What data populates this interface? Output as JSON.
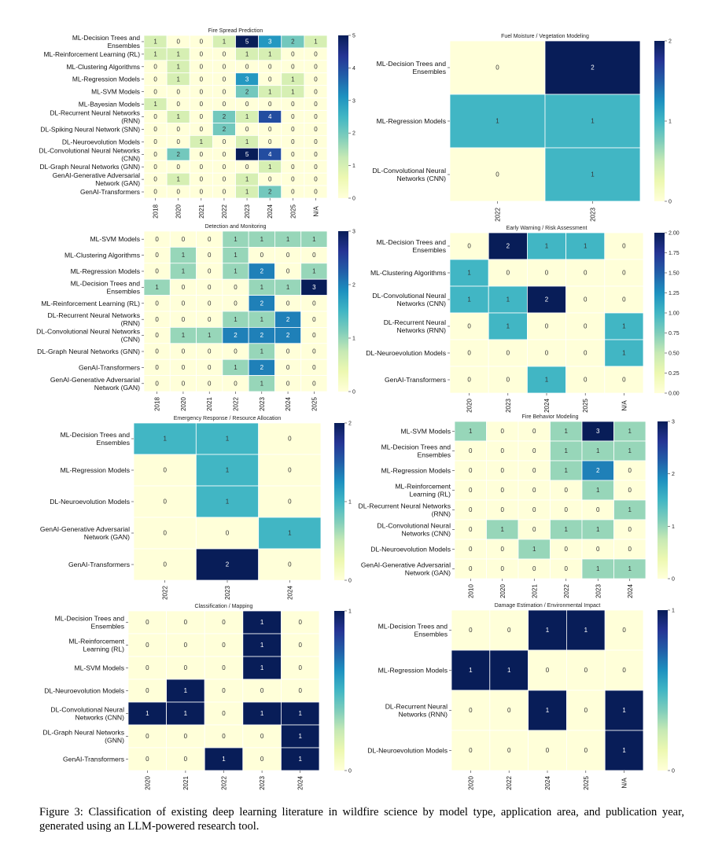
{
  "caption": "Figure 3: Classification of existing deep learning literature in wildfire science by model type, application area, and publication year, generated using an LLM-powered research tool.",
  "chart_data": [
    {
      "type": "heatmap",
      "title": "Fire Spread Prediction",
      "columns": [
        "2018",
        "2020",
        "2021",
        "2022",
        "2023",
        "2024",
        "2025",
        "N/A"
      ],
      "rows": [
        [
          "ML-Decision Trees and",
          "Ensembles"
        ],
        [
          "ML-Reinforcement Learning (RL)"
        ],
        [
          "ML-Clustering Algorithms"
        ],
        [
          "ML-Regression Models"
        ],
        [
          "ML-SVM Models"
        ],
        [
          "ML-Bayesian Models"
        ],
        [
          "DL-Recurrent Neural Networks",
          "(RNN)"
        ],
        [
          "DL-Spiking Neural Network (SNN)"
        ],
        [
          "DL-Neuroevolution Models"
        ],
        [
          "DL-Convolutional Neural Networks",
          "(CNN)"
        ],
        [
          "DL-Graph Neural Networks (GNN)"
        ],
        [
          "GenAI-Generative Adversarial",
          "Network (GAN)"
        ],
        [
          "GenAI-Transformers"
        ]
      ],
      "values": [
        [
          1,
          0,
          0,
          1,
          5,
          3,
          2,
          1
        ],
        [
          1,
          1,
          0,
          0,
          1,
          1,
          0,
          0
        ],
        [
          0,
          1,
          0,
          0,
          0,
          0,
          0,
          0
        ],
        [
          0,
          1,
          0,
          0,
          3,
          0,
          1,
          0
        ],
        [
          0,
          0,
          0,
          0,
          2,
          1,
          1,
          0
        ],
        [
          1,
          0,
          0,
          0,
          0,
          0,
          0,
          0
        ],
        [
          0,
          1,
          0,
          2,
          1,
          4,
          0,
          0
        ],
        [
          0,
          0,
          0,
          2,
          0,
          0,
          0,
          0
        ],
        [
          0,
          0,
          1,
          0,
          1,
          0,
          0,
          0
        ],
        [
          0,
          2,
          0,
          0,
          5,
          4,
          0,
          0
        ],
        [
          0,
          0,
          0,
          0,
          0,
          1,
          0,
          0
        ],
        [
          0,
          1,
          0,
          0,
          1,
          0,
          0,
          0
        ],
        [
          0,
          0,
          0,
          0,
          1,
          2,
          0,
          0
        ]
      ],
      "vmin": 0,
      "vmax": 5,
      "colorbar_ticks": [
        "0",
        "1",
        "2",
        "3",
        "4",
        "5"
      ]
    },
    {
      "type": "heatmap",
      "title": "Fuel Moisture / Vegetation Modeling",
      "columns": [
        "2022",
        "2023"
      ],
      "rows": [
        [
          "ML-Decision Trees and",
          "Ensembles"
        ],
        [
          "ML-Regression Models"
        ],
        [
          "DL-Convolutional Neural",
          "Networks (CNN)"
        ]
      ],
      "values": [
        [
          0,
          2
        ],
        [
          1,
          1
        ],
        [
          0,
          1
        ]
      ],
      "vmin": 0,
      "vmax": 2,
      "colorbar_ticks": [
        "0",
        "1",
        "2"
      ]
    },
    {
      "type": "heatmap",
      "title": "Detection and Monitoring",
      "columns": [
        "2018",
        "2020",
        "2021",
        "2022",
        "2023",
        "2024",
        "2025"
      ],
      "rows": [
        [
          "ML-SVM Models"
        ],
        [
          "ML-Clustering Algorithms"
        ],
        [
          "ML-Regression Models"
        ],
        [
          "ML-Decision Trees and",
          "Ensembles"
        ],
        [
          "ML-Reinforcement Learning (RL)"
        ],
        [
          "DL-Recurrent Neural Networks",
          "(RNN)"
        ],
        [
          "DL-Convolutional Neural Networks",
          "(CNN)"
        ],
        [
          "DL-Graph Neural Networks (GNN)"
        ],
        [
          "GenAI-Transformers"
        ],
        [
          "GenAI-Generative Adversarial",
          "Network (GAN)"
        ]
      ],
      "values": [
        [
          0,
          0,
          0,
          1,
          1,
          1,
          1
        ],
        [
          0,
          1,
          0,
          1,
          0,
          0,
          0
        ],
        [
          0,
          1,
          0,
          1,
          2,
          0,
          1
        ],
        [
          1,
          0,
          0,
          0,
          1,
          1,
          3
        ],
        [
          0,
          0,
          0,
          0,
          2,
          0,
          0
        ],
        [
          0,
          0,
          0,
          1,
          1,
          2,
          0
        ],
        [
          0,
          1,
          1,
          2,
          2,
          2,
          0
        ],
        [
          0,
          0,
          0,
          0,
          1,
          0,
          0
        ],
        [
          0,
          0,
          0,
          1,
          2,
          0,
          0
        ],
        [
          0,
          0,
          0,
          0,
          1,
          0,
          0
        ]
      ],
      "vmin": 0,
      "vmax": 3,
      "colorbar_ticks": [
        "0",
        "1",
        "2",
        "3"
      ]
    },
    {
      "type": "heatmap",
      "title": "Early Warning / Risk Assessment",
      "columns": [
        "2020",
        "2023",
        "2024",
        "2025",
        "N/A"
      ],
      "rows": [
        [
          "ML-Decision Trees and",
          "Ensembles"
        ],
        [
          "ML-Clustering Algorithms"
        ],
        [
          "DL-Convolutional Neural",
          "Networks (CNN)"
        ],
        [
          "DL-Recurrent Neural",
          "Networks (RNN)"
        ],
        [
          "DL-Neuroevolution Models"
        ],
        [
          "GenAI-Transformers"
        ]
      ],
      "values": [
        [
          0,
          2,
          1,
          1,
          0
        ],
        [
          1,
          0,
          0,
          0,
          0
        ],
        [
          1,
          1,
          2,
          0,
          0
        ],
        [
          0,
          1,
          0,
          0,
          1
        ],
        [
          0,
          0,
          0,
          0,
          1
        ],
        [
          0,
          0,
          1,
          0,
          0
        ]
      ],
      "vmin": 0,
      "vmax": 2,
      "colorbar_ticks": [
        "0.00",
        "0.25",
        "0.50",
        "0.75",
        "1.00",
        "1.25",
        "1.50",
        "1.75",
        "2.00"
      ]
    },
    {
      "type": "heatmap",
      "title": "Emergency Response / Resource Allocation",
      "columns": [
        "2022",
        "2023",
        "2024"
      ],
      "rows": [
        [
          "ML-Decision Trees and",
          "Ensembles"
        ],
        [
          "ML-Regression Models"
        ],
        [
          "DL-Neuroevolution Models"
        ],
        [
          "GenAI-Generative Adversarial",
          "Network (GAN)"
        ],
        [
          "GenAI-Transformers"
        ]
      ],
      "values": [
        [
          1,
          1,
          0
        ],
        [
          0,
          1,
          0
        ],
        [
          0,
          1,
          0
        ],
        [
          0,
          0,
          1
        ],
        [
          0,
          2,
          0
        ]
      ],
      "vmin": 0,
      "vmax": 2,
      "colorbar_ticks": [
        "0",
        "1",
        "2"
      ]
    },
    {
      "type": "heatmap",
      "title": "Fire Behavior Modeling",
      "columns": [
        "2010",
        "2020",
        "2021",
        "2022",
        "2023",
        "2024"
      ],
      "rows": [
        [
          "ML-SVM Models"
        ],
        [
          "ML-Decision Trees and",
          "Ensembles"
        ],
        [
          "ML-Regression Models"
        ],
        [
          "ML-Reinforcement",
          "Learning (RL)"
        ],
        [
          "DL-Recurrent Neural Networks",
          "(RNN)"
        ],
        [
          "DL-Convolutional Neural",
          "Networks (CNN)"
        ],
        [
          "DL-Neuroevolution Models"
        ],
        [
          "GenAI-Generative Adversarial",
          "Network (GAN)"
        ]
      ],
      "values": [
        [
          1,
          0,
          0,
          1,
          3,
          1
        ],
        [
          0,
          0,
          0,
          1,
          1,
          1
        ],
        [
          0,
          0,
          0,
          1,
          2,
          0
        ],
        [
          0,
          0,
          0,
          0,
          1,
          0
        ],
        [
          0,
          0,
          0,
          0,
          0,
          1
        ],
        [
          0,
          1,
          0,
          1,
          1,
          0
        ],
        [
          0,
          0,
          1,
          0,
          0,
          0
        ],
        [
          0,
          0,
          0,
          0,
          1,
          1
        ]
      ],
      "vmin": 0,
      "vmax": 3,
      "colorbar_ticks": [
        "0",
        "1",
        "2",
        "3"
      ]
    },
    {
      "type": "heatmap",
      "title": "Classification / Mapping",
      "columns": [
        "2020",
        "2021",
        "2022",
        "2023",
        "2024"
      ],
      "rows": [
        [
          "ML-Decision Trees and",
          "Ensembles"
        ],
        [
          "ML-Reinforcement",
          "Learning (RL)"
        ],
        [
          "ML-SVM Models"
        ],
        [
          "DL-Neuroevolution Models"
        ],
        [
          "DL-Convolutional Neural",
          "Networks (CNN)"
        ],
        [
          "DL-Graph Neural Networks",
          "(GNN)"
        ],
        [
          "GenAI-Transformers"
        ]
      ],
      "values": [
        [
          0,
          0,
          0,
          1,
          0
        ],
        [
          0,
          0,
          0,
          1,
          0
        ],
        [
          0,
          0,
          0,
          1,
          0
        ],
        [
          0,
          1,
          0,
          0,
          0
        ],
        [
          1,
          1,
          0,
          1,
          1
        ],
        [
          0,
          0,
          0,
          0,
          1
        ],
        [
          0,
          0,
          1,
          0,
          1
        ]
      ],
      "vmin": 0,
      "vmax": 1,
      "colorbar_ticks": [
        "0",
        "1"
      ]
    },
    {
      "type": "heatmap",
      "title": "Damage Estimation / Environmental Impact",
      "columns": [
        "2020",
        "2022",
        "2024",
        "2025",
        "N/A"
      ],
      "rows": [
        [
          "ML-Decision Trees and",
          "Ensembles"
        ],
        [
          "ML-Regression Models"
        ],
        [
          "DL-Recurrent Neural",
          "Networks (RNN)"
        ],
        [
          "DL-Neuroevolution Models"
        ]
      ],
      "values": [
        [
          0,
          0,
          1,
          1,
          0
        ],
        [
          1,
          1,
          0,
          0,
          0
        ],
        [
          0,
          0,
          1,
          0,
          1
        ],
        [
          0,
          0,
          0,
          0,
          1
        ]
      ],
      "vmin": 0,
      "vmax": 1,
      "colorbar_ticks": [
        "0",
        "1"
      ]
    }
  ]
}
